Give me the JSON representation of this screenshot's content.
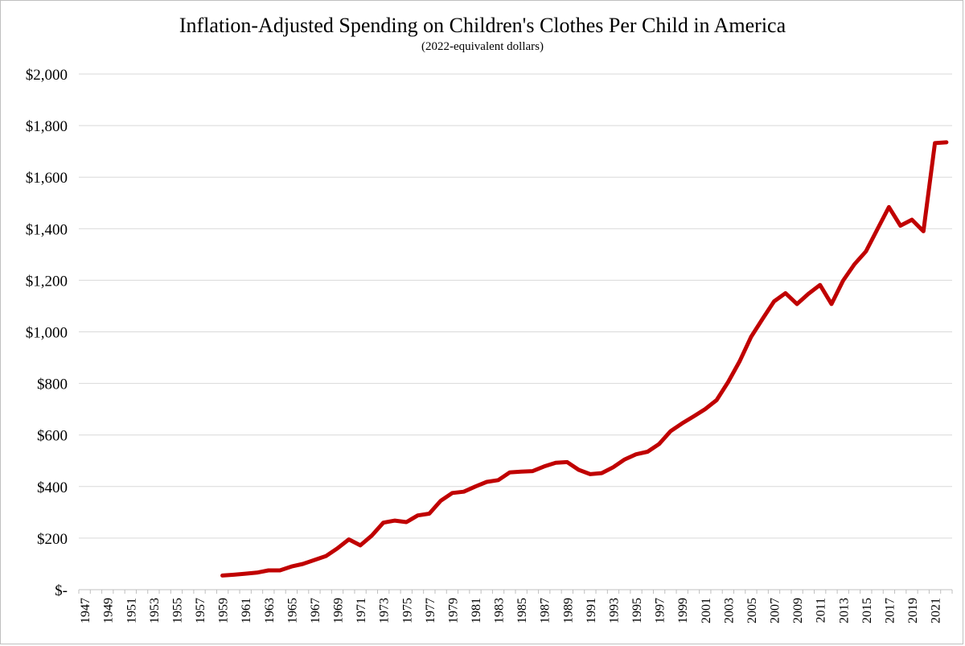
{
  "chart_data": {
    "type": "line",
    "title": "Inflation-Adjusted Spending on Children's Clothes Per Child in America",
    "subtitle": "(2022-equivalent dollars)",
    "xlabel": "",
    "ylabel": "",
    "ylim": [
      0,
      2000
    ],
    "xlim": [
      1947,
      2022
    ],
    "grid": true,
    "legend": "none",
    "y_ticks": [
      0,
      200,
      400,
      600,
      800,
      1000,
      1200,
      1400,
      1600,
      1800,
      2000
    ],
    "y_tick_labels": [
      "$-",
      "$200",
      "$400",
      "$600",
      "$800",
      "$1,000",
      "$1,200",
      "$1,400",
      "$1,600",
      "$1,800",
      "$2,000"
    ],
    "x_tick_labels": [
      "1947",
      "1949",
      "1951",
      "1953",
      "1955",
      "1957",
      "1959",
      "1961",
      "1963",
      "1965",
      "1967",
      "1969",
      "1971",
      "1973",
      "1975",
      "1977",
      "1979",
      "1981",
      "1983",
      "1985",
      "1987",
      "1989",
      "1991",
      "1993",
      "1995",
      "1997",
      "1999",
      "2001",
      "2003",
      "2005",
      "2007",
      "2009",
      "2011",
      "2013",
      "2015",
      "2017",
      "2019",
      "2021"
    ],
    "series": [
      {
        "color": "#c00000",
        "x": [
          1959,
          1960,
          1961,
          1962,
          1963,
          1964,
          1965,
          1966,
          1967,
          1968,
          1969,
          1970,
          1971,
          1972,
          1973,
          1974,
          1975,
          1976,
          1977,
          1978,
          1979,
          1980,
          1981,
          1982,
          1983,
          1984,
          1985,
          1986,
          1987,
          1988,
          1989,
          1990,
          1991,
          1992,
          1993,
          1994,
          1995,
          1996,
          1997,
          1998,
          1999,
          2000,
          2001,
          2002,
          2003,
          2004,
          2005,
          2006,
          2007,
          2008,
          2009,
          2010,
          2011,
          2012,
          2013,
          2014,
          2015,
          2016,
          2017,
          2018,
          2019,
          2020,
          2021,
          2022
        ],
        "values": [
          55,
          58,
          62,
          66,
          75,
          75,
          90,
          100,
          115,
          130,
          160,
          195,
          172,
          210,
          260,
          268,
          262,
          288,
          295,
          345,
          375,
          380,
          400,
          418,
          425,
          455,
          458,
          460,
          478,
          492,
          495,
          465,
          448,
          452,
          475,
          505,
          525,
          535,
          565,
          615,
          645,
          672,
          700,
          735,
          805,
          885,
          980,
          1050,
          1118,
          1150,
          1108,
          1148,
          1182,
          1108,
          1198,
          1262,
          1312,
          1398,
          1484,
          1412,
          1435,
          1390,
          1732,
          1735
        ]
      }
    ]
  }
}
